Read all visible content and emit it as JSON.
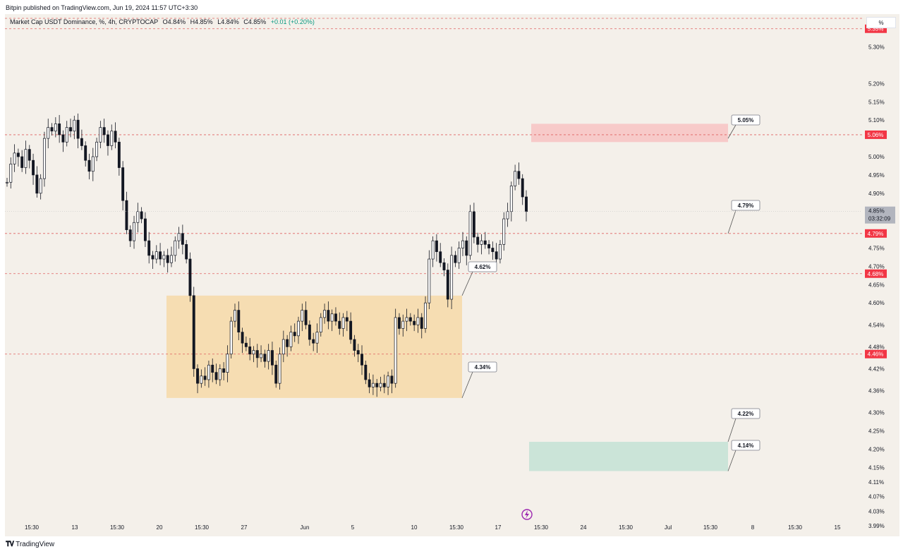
{
  "header": {
    "publisher_line": "Bitpin published on TradingView.com,  Jun 19, 2024 11:57 UTC+3:30"
  },
  "legend": {
    "symbol": "Market Cap USDT Dominance, %, 4h, CRYPTOCAP",
    "open": "O4.84%",
    "high": "H4.85%",
    "low": "L4.84%",
    "close": "C4.85%",
    "change": "+0.01 (+0.20%)"
  },
  "scale_button": "%",
  "footer": {
    "brand": "TradingView"
  },
  "colors": {
    "background": "#f4f0ea",
    "candle": "#131722",
    "dashed_level": "#e06060",
    "level_tag": "#f23645",
    "range_box": "#f6d9a8",
    "resistance_zone": "#f7c5c5",
    "support_zone": "#c6e2d6",
    "last_price_tag": "#b2b5be",
    "lightning_icon": "#9c27b0"
  },
  "chart_data": {
    "type": "candlestick",
    "timeframe": "4h",
    "y_axis": {
      "unit": "%",
      "range": [
        4.0,
        5.39
      ],
      "ticks": [
        "5.30%",
        "5.20%",
        "5.15%",
        "5.10%",
        "5.00%",
        "4.95%",
        "4.90%",
        "4.75%",
        "4.70%",
        "4.65%",
        "4.60%",
        "4.54%",
        "4.48%",
        "4.42%",
        "4.36%",
        "4.30%",
        "4.25%",
        "4.20%",
        "4.15%",
        "4.11%",
        "4.07%",
        "4.03%",
        "3.99%"
      ]
    },
    "x_axis": {
      "labels": [
        "15:30",
        "13",
        "15:30",
        "20",
        "15:30",
        "27",
        "Jun",
        "5",
        "10",
        "15:30",
        "17",
        "15:30",
        "24",
        "15:30",
        "Jul",
        "15:30",
        "8",
        "15:30",
        "15"
      ]
    },
    "horizontal_levels": [
      {
        "value": 5.35,
        "label": "5.35%"
      },
      {
        "value": 5.06,
        "label": "5.06%"
      },
      {
        "value": 4.79,
        "label": "4.79%"
      },
      {
        "value": 4.68,
        "label": "4.68%"
      },
      {
        "value": 4.46,
        "label": "4.46%"
      }
    ],
    "last_price": {
      "value": 4.85,
      "label": "4.85%",
      "countdown": "03:32:09"
    },
    "range_box": {
      "top": 4.62,
      "bottom": 4.34,
      "start_label": "20",
      "end_label": "15:30"
    },
    "zones": [
      {
        "name": "resistance",
        "top": 5.09,
        "bottom": 5.04
      },
      {
        "name": "support",
        "top": 4.22,
        "bottom": 4.14
      }
    ],
    "callouts": [
      {
        "value": 4.62,
        "label": "4.62%"
      },
      {
        "value": 4.34,
        "label": "4.34%"
      },
      {
        "value": 5.05,
        "label": "5.05%"
      },
      {
        "value": 4.79,
        "label": "4.79%"
      },
      {
        "value": 4.22,
        "label": "4.22%"
      },
      {
        "value": 4.14,
        "label": "4.14%"
      }
    ],
    "closes": [
      4.93,
      4.98,
      5.01,
      5.0,
      4.97,
      5.02,
      4.99,
      4.95,
      4.9,
      4.94,
      5.05,
      5.08,
      5.07,
      5.09,
      5.06,
      5.04,
      5.08,
      5.07,
      5.1,
      5.05,
      5.03,
      4.99,
      4.96,
      5.0,
      5.04,
      5.08,
      5.06,
      5.03,
      5.07,
      5.04,
      4.97,
      4.88,
      4.8,
      4.77,
      4.82,
      4.85,
      4.83,
      4.77,
      4.73,
      4.72,
      4.74,
      4.72,
      4.73,
      4.71,
      4.73,
      4.77,
      4.79,
      4.76,
      4.72,
      4.62,
      4.42,
      4.38,
      4.4,
      4.39,
      4.43,
      4.41,
      4.39,
      4.42,
      4.41,
      4.46,
      4.55,
      4.58,
      4.52,
      4.49,
      4.48,
      4.46,
      4.47,
      4.45,
      4.46,
      4.44,
      4.47,
      4.43,
      4.38,
      4.46,
      4.5,
      4.48,
      4.52,
      4.51,
      4.55,
      4.58,
      4.54,
      4.5,
      4.49,
      4.52,
      4.56,
      4.58,
      4.55,
      4.57,
      4.55,
      4.53,
      4.56,
      4.55,
      4.5,
      4.47,
      4.46,
      4.43,
      4.39,
      4.37,
      4.38,
      4.37,
      4.38,
      4.37,
      4.4,
      4.38,
      4.56,
      4.53,
      4.55,
      4.56,
      4.55,
      4.54,
      4.56,
      4.53,
      4.6,
      4.72,
      4.77,
      4.74,
      4.71,
      4.69,
      4.61,
      4.73,
      4.71,
      4.75,
      4.77,
      4.73,
      4.85,
      4.78,
      4.76,
      4.77,
      4.76,
      4.75,
      4.74,
      4.72,
      4.76,
      4.83,
      4.85,
      4.92,
      4.96,
      4.94,
      4.89,
      4.85
    ]
  }
}
